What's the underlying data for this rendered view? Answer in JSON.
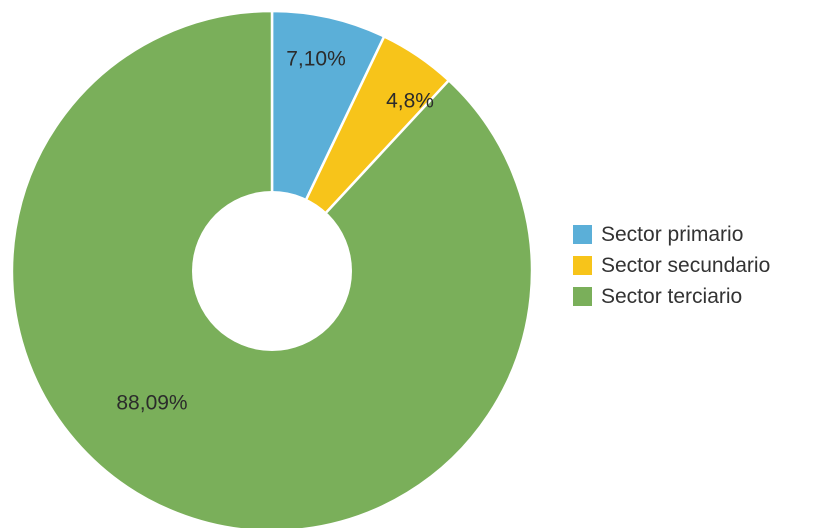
{
  "chart_data": {
    "type": "pie",
    "donut": true,
    "slices": [
      {
        "name": "Sector primario",
        "value": 7.1,
        "label": "7,10%",
        "color": "#5bafd8"
      },
      {
        "name": "Sector secundario",
        "value": 4.8,
        "label": "4,8%",
        "color": "#f7c41a"
      },
      {
        "name": "Sector terciario",
        "value": 88.09,
        "label": "88,09%",
        "color": "#7aaf5a"
      }
    ],
    "legend_position": "right"
  }
}
